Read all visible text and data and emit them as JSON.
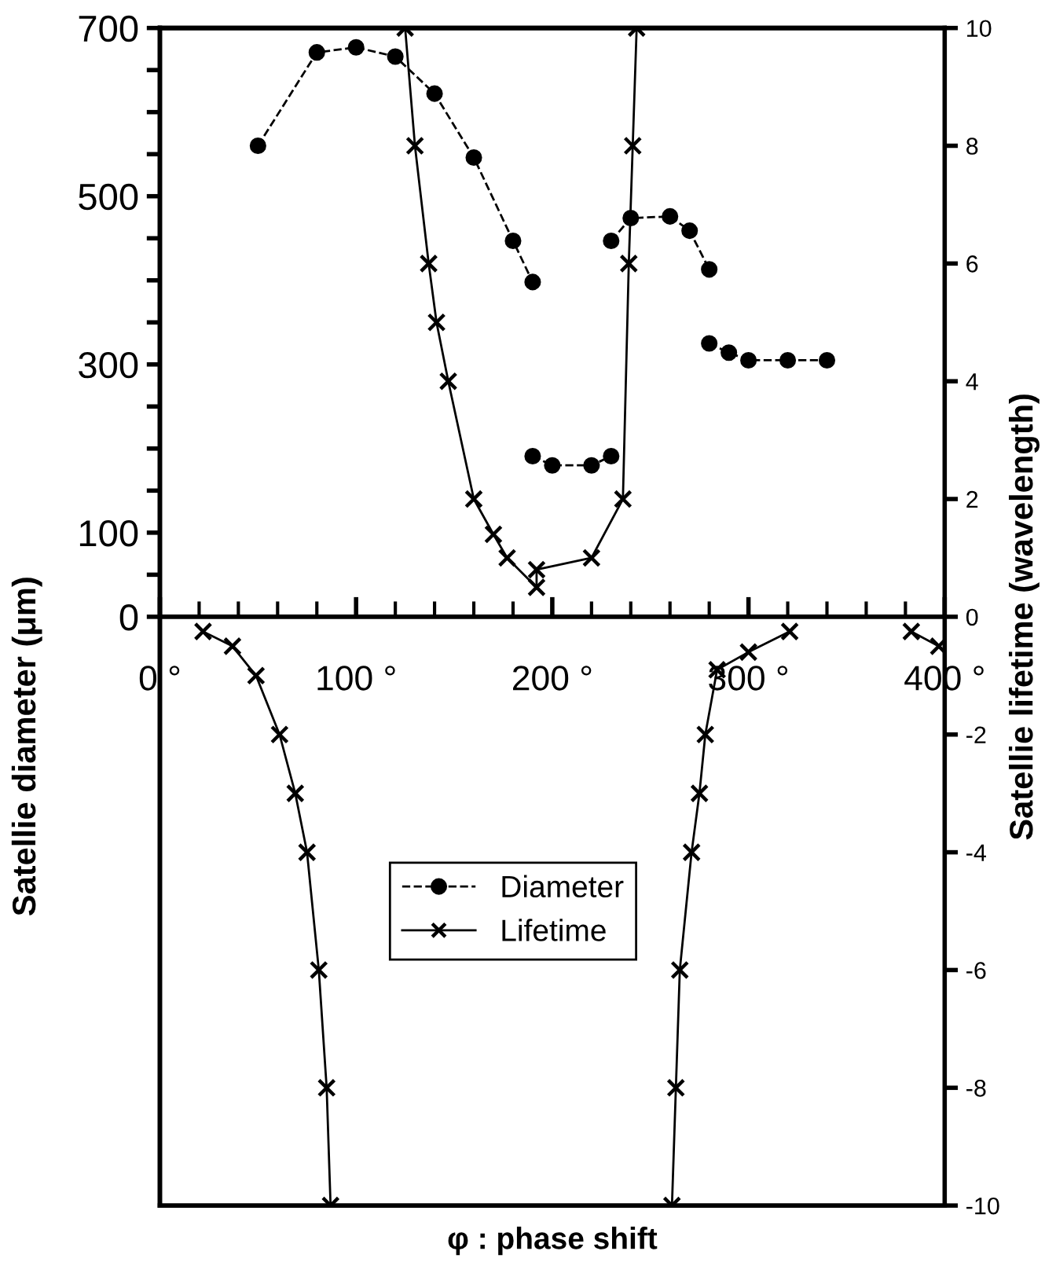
{
  "chart_data": {
    "type": "line",
    "xlabel": "φ : phase shift",
    "ylabel": "Satellie diameter (μm)",
    "y2label": "Satellie lifetime (wavelength)",
    "xlim": [
      0,
      400
    ],
    "xticks": [
      {
        "value": 0,
        "label": "0 °"
      },
      {
        "value": 20,
        "label": null
      },
      {
        "value": 40,
        "label": null
      },
      {
        "value": 60,
        "label": null
      },
      {
        "value": 80,
        "label": null
      },
      {
        "value": 100,
        "label": "100 °"
      },
      {
        "value": 120,
        "label": null
      },
      {
        "value": 140,
        "label": null
      },
      {
        "value": 160,
        "label": null
      },
      {
        "value": 180,
        "label": null
      },
      {
        "value": 200,
        "label": "200 °"
      },
      {
        "value": 220,
        "label": null
      },
      {
        "value": 240,
        "label": null
      },
      {
        "value": 260,
        "label": null
      },
      {
        "value": 280,
        "label": null
      },
      {
        "value": 300,
        "label": "300 °"
      },
      {
        "value": 320,
        "label": null
      },
      {
        "value": 340,
        "label": null
      },
      {
        "value": 360,
        "label": null
      },
      {
        "value": 380,
        "label": null
      },
      {
        "value": 400,
        "label": "400 °"
      }
    ],
    "ylim": [
      -700,
      700
    ],
    "yticks": [
      0,
      {
        "value": 50,
        "label": null
      },
      100,
      {
        "value": 150,
        "label": null
      },
      {
        "value": 200,
        "label": null
      },
      {
        "value": 250,
        "label": null
      },
      300,
      {
        "value": 350,
        "label": null
      },
      {
        "value": 400,
        "label": null
      },
      {
        "value": 450,
        "label": null
      },
      500,
      {
        "value": 550,
        "label": null
      },
      {
        "value": 600,
        "label": null
      },
      {
        "value": 650,
        "label": null
      },
      700
    ],
    "y2lim": [
      -10,
      10
    ],
    "y2ticks": [
      -10,
      -8,
      -6,
      -4,
      -2,
      0,
      2,
      4,
      6,
      8,
      10
    ],
    "legend": "bottom",
    "grid": false,
    "series": [
      {
        "name": "Diameter",
        "color": "#000000",
        "marker": "circle",
        "line_style": "dashed",
        "x": [
          50,
          80,
          100,
          120,
          140,
          160,
          180,
          190
        ],
        "values": [
          560,
          671,
          677,
          666,
          622,
          546,
          447,
          398
        ]
      },
      {
        "color": "#000000",
        "marker": "circle",
        "line_style": "dashed",
        "x": [
          190,
          200,
          220,
          230
        ],
        "values": [
          191,
          180,
          180,
          191
        ]
      },
      {
        "color": "#000000",
        "marker": "circle",
        "line_style": "dashed",
        "x": [
          230,
          240,
          260,
          270,
          280
        ],
        "values": [
          447,
          474,
          476,
          459,
          413
        ]
      },
      {
        "color": "#000000",
        "marker": "circle",
        "line_style": "dashed",
        "x": [
          280,
          290,
          300,
          320,
          340
        ],
        "values": [
          325,
          314,
          305,
          305,
          305
        ]
      },
      {
        "name": "Lifetime",
        "color": "#000000",
        "marker": "cross",
        "line_style": "solid",
        "axis": "y2",
        "x": [
          125,
          130,
          137,
          141,
          147,
          160,
          170,
          177,
          192,
          192,
          220,
          236,
          239,
          241,
          243
        ],
        "values": [
          10,
          8,
          6,
          5,
          4,
          2,
          1.4,
          1.0,
          0.5,
          0.8,
          1.0,
          2,
          6,
          8,
          10
        ]
      },
      {
        "color": "#000000",
        "marker": "cross",
        "line_style": "solid",
        "axis": "y2",
        "x": [
          22,
          37,
          49,
          61,
          69,
          75,
          81,
          85,
          87
        ],
        "values": [
          -0.25,
          -0.5,
          -1,
          -2,
          -3,
          -4,
          -6,
          -8,
          -10
        ]
      },
      {
        "color": "#000000",
        "marker": "cross",
        "line_style": "solid",
        "axis": "y2",
        "x": [
          261,
          263,
          265,
          271,
          275,
          278,
          284,
          300,
          321
        ],
        "values": [
          -10,
          -8,
          -6,
          -4,
          -3,
          -2,
          -0.9,
          -0.6,
          -0.25
        ]
      },
      {
        "color": "#000000",
        "marker": "cross",
        "line_style": "solid",
        "axis": "y2",
        "x": [
          383,
          397
        ],
        "values": [
          -0.25,
          -0.5
        ]
      }
    ]
  }
}
